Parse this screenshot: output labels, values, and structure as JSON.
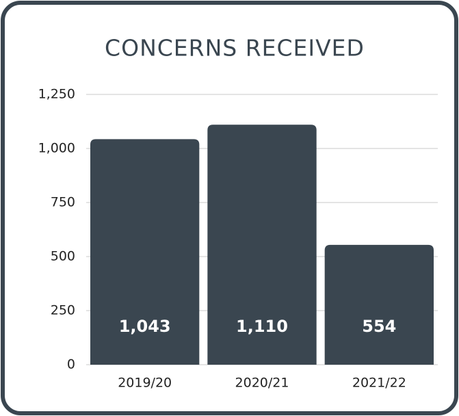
{
  "chart_data": {
    "type": "bar",
    "title": "CONCERNS RECEIVED",
    "categories": [
      "2019/20",
      "2020/21",
      "2021/22"
    ],
    "values": [
      1043,
      1110,
      554
    ],
    "value_labels": [
      "1,043",
      "1,110",
      "554"
    ],
    "color": "#3a4650",
    "ylim": [
      0,
      1250
    ],
    "yticks": [
      0,
      250,
      500,
      750,
      {
        "value": 1000,
        "label": "1,000"
      },
      {
        "value": 1250,
        "label": "1,250"
      }
    ],
    "grid": true
  }
}
